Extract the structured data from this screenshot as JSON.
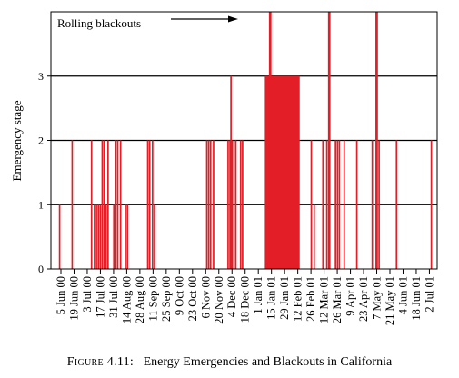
{
  "chart_data": {
    "type": "bar",
    "ylabel": "Emergency stage",
    "ylim": [
      0,
      4
    ],
    "yticks": [
      0,
      1,
      2,
      3
    ],
    "grid_y": true,
    "bar_color": "#e41e26",
    "annotation": "Rolling blackouts",
    "x_start": "2000-06-05",
    "x_end": "2001-07-09",
    "tick_labels": [
      "5 Jun 00",
      "19 Jun 00",
      "3 Jul 00",
      "17 Jul 00",
      "31 Jul 00",
      "14 Aug 00",
      "28 Aug 00",
      "11 Sep 00",
      "25 Sep 00",
      "9 Oct 00",
      "23 Oct 00",
      "6 Nov 00",
      "20 Nov 00",
      "4 Dec 00",
      "18 Dec 00",
      "1 Jan 01",
      "15 Jan 01",
      "29 Jan 01",
      "12 Feb 01",
      "26 Feb 01",
      "12 Mar 01",
      "26 Mar 01",
      "9 Apr 01",
      "23 Apr 01",
      "7 May 01",
      "21 May 01",
      "4 Jun 01",
      "18 Jun 01",
      "2 Jul 01"
    ],
    "events": [
      {
        "x": "2000-06-14",
        "y": 1
      },
      {
        "x": "2000-06-27",
        "y": 2
      },
      {
        "x": "2000-07-17",
        "y": 2
      },
      {
        "x": "2000-07-20",
        "y": 1
      },
      {
        "x": "2000-07-22",
        "y": 1
      },
      {
        "x": "2000-07-24",
        "y": 1
      },
      {
        "x": "2000-07-26",
        "y": 1
      },
      {
        "x": "2000-07-28",
        "y": 2
      },
      {
        "x": "2000-07-30",
        "y": 2
      },
      {
        "x": "2000-08-01",
        "y": 1
      },
      {
        "x": "2000-08-03",
        "y": 2
      },
      {
        "x": "2000-08-09",
        "y": 1
      },
      {
        "x": "2000-08-11",
        "y": 2
      },
      {
        "x": "2000-08-13",
        "y": 2
      },
      {
        "x": "2000-08-16",
        "y": 2
      },
      {
        "x": "2000-08-21",
        "y": 1
      },
      {
        "x": "2000-08-23",
        "y": 1
      },
      {
        "x": "2000-09-13",
        "y": 2
      },
      {
        "x": "2000-09-15",
        "y": 2
      },
      {
        "x": "2000-09-18",
        "y": 2
      },
      {
        "x": "2000-09-20",
        "y": 1
      },
      {
        "x": "2000-11-13",
        "y": 2
      },
      {
        "x": "2000-11-15",
        "y": 2
      },
      {
        "x": "2000-11-17",
        "y": 2
      },
      {
        "x": "2000-11-20",
        "y": 2
      },
      {
        "x": "2000-12-05",
        "y": 2
      },
      {
        "x": "2000-12-07",
        "y": 2
      },
      {
        "x": "2000-12-08",
        "y": 3
      },
      {
        "x": "2000-12-09",
        "y": 2
      },
      {
        "x": "2000-12-11",
        "y": 2
      },
      {
        "x": "2000-12-13",
        "y": 2
      },
      {
        "x": "2000-12-18",
        "y": 2
      },
      {
        "x": "2000-12-20",
        "y": 2
      },
      {
        "x": "2001-01-17",
        "y": 4
      },
      {
        "x": "2001-01-18",
        "y": 4
      },
      {
        "x": "2001-03-01",
        "y": 2
      },
      {
        "x": "2001-03-04",
        "y": 1
      },
      {
        "x": "2001-03-13",
        "y": 2
      },
      {
        "x": "2001-03-17",
        "y": 2
      },
      {
        "x": "2001-03-19",
        "y": 4
      },
      {
        "x": "2001-03-20",
        "y": 4
      },
      {
        "x": "2001-03-26",
        "y": 2
      },
      {
        "x": "2001-03-28",
        "y": 2
      },
      {
        "x": "2001-03-30",
        "y": 2
      },
      {
        "x": "2001-04-04",
        "y": 2
      },
      {
        "x": "2001-04-17",
        "y": 2
      },
      {
        "x": "2001-05-03",
        "y": 2
      },
      {
        "x": "2001-05-07",
        "y": 4
      },
      {
        "x": "2001-05-08",
        "y": 4
      },
      {
        "x": "2001-05-10",
        "y": 2
      },
      {
        "x": "2001-05-28",
        "y": 2
      },
      {
        "x": "2001-07-03",
        "y": 2
      }
    ],
    "blocks": [
      {
        "start": "2001-01-12",
        "end": "2001-02-17",
        "y": 3
      }
    ]
  },
  "caption": {
    "label": "Figure 4.11:",
    "text": "Energy Emergencies and Blackouts in California"
  }
}
